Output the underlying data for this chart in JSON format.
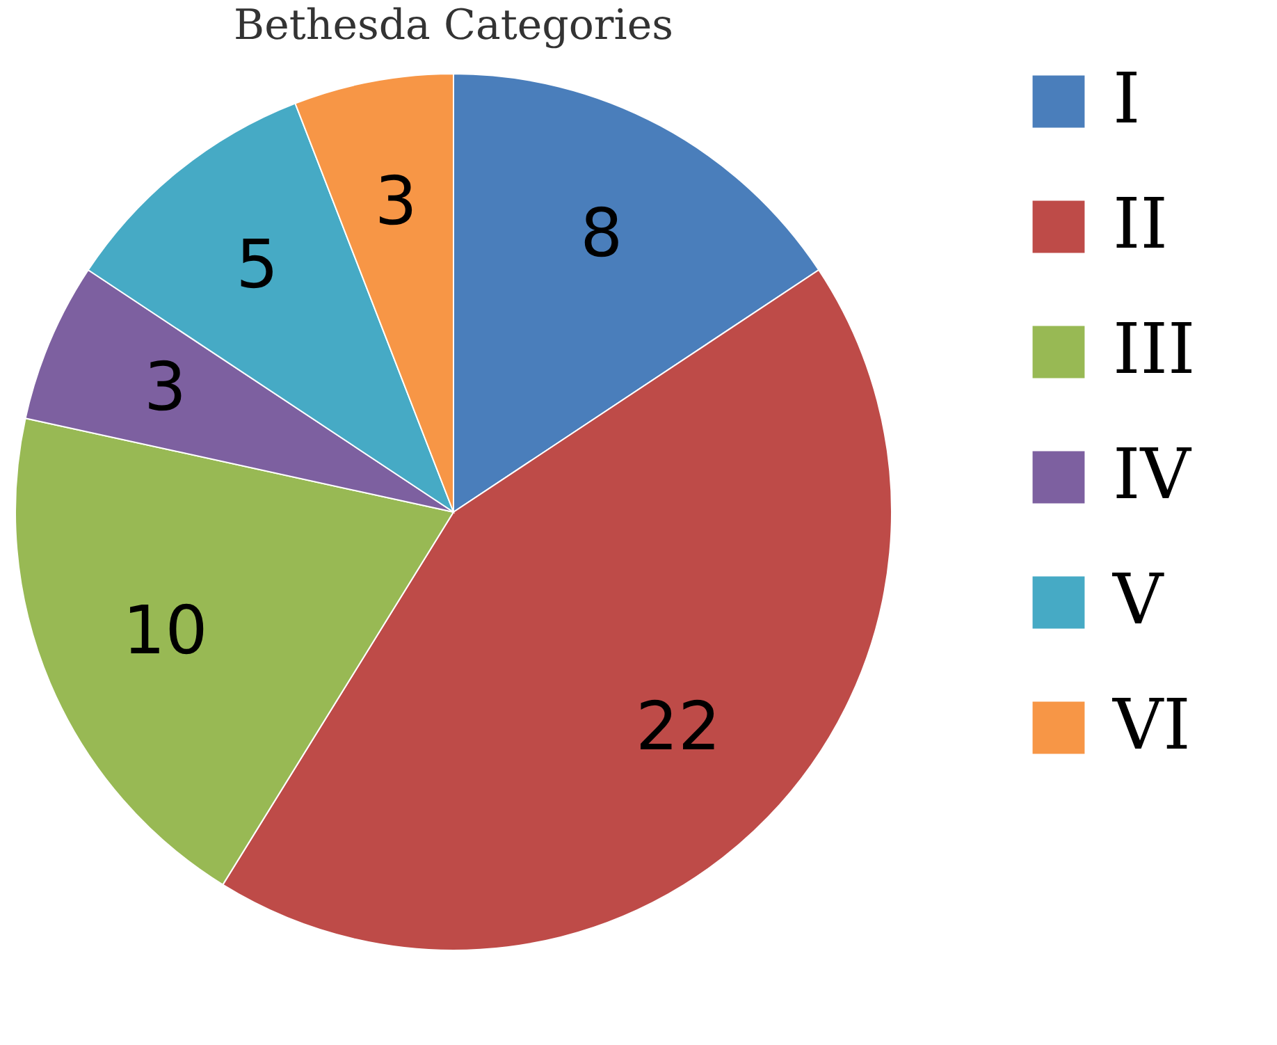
{
  "chart_data": {
    "type": "pie",
    "title": "Bethesda Categories",
    "categories": [
      "I",
      "II",
      "III",
      "IV",
      "V",
      "VI"
    ],
    "values": [
      8,
      22,
      10,
      3,
      5,
      3
    ],
    "colors": [
      "#4a7ebb",
      "#be4b48",
      "#98b954",
      "#7d60a0",
      "#46aac5",
      "#f79646"
    ],
    "data_labels": true,
    "legend": "right"
  }
}
